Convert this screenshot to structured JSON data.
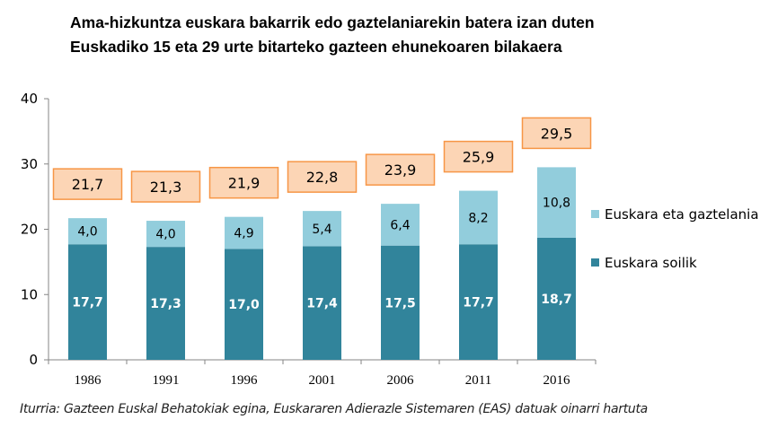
{
  "chart_data": {
    "type": "bar",
    "stacked": true,
    "title_lines": [
      "Ama-hizkuntza euskara bakarrik edo gaztelaniarekin batera izan duten",
      "Euskadiko  15 eta 29 urte bitarteko gazteen ehunekoaren bilakaera"
    ],
    "categories": [
      "1986",
      "1991",
      "1996",
      "2001",
      "2006",
      "2011",
      "2016"
    ],
    "series": [
      {
        "name": "Euskara soilik",
        "color": "#31849B",
        "values": [
          17.7,
          17.3,
          17.0,
          17.4,
          17.5,
          17.7,
          18.7
        ],
        "labels": [
          "17,7",
          "17,3",
          "17,0",
          "17,4",
          "17,5",
          "17,7",
          "18,7"
        ]
      },
      {
        "name": "Euskara eta gaztelania",
        "color": "#92CDDC",
        "values": [
          4.0,
          4.0,
          4.9,
          5.4,
          6.4,
          8.2,
          10.8
        ],
        "labels": [
          "4,0",
          "4,0",
          "4,9",
          "5,4",
          "6,4",
          "8,2",
          "10,8"
        ]
      }
    ],
    "totals": [
      21.7,
      21.3,
      21.9,
      22.8,
      23.9,
      25.9,
      29.5
    ],
    "total_labels": [
      "21,7",
      "21,3",
      "21,9",
      "22,8",
      "23,9",
      "25,9",
      "29,5"
    ],
    "total_box_fill": "#FCD5B5",
    "total_box_border": "#F79646",
    "yticks": [
      "0",
      "10",
      "20",
      "30",
      "40"
    ],
    "ylim": [
      0,
      40
    ],
    "grid": false,
    "legend_placement": "right",
    "source": "Iturria: Gazteen Euskal Behatokiak egina, Euskararen Adierazle Sistemaren (EAS) datuak oinarri hartuta"
  }
}
